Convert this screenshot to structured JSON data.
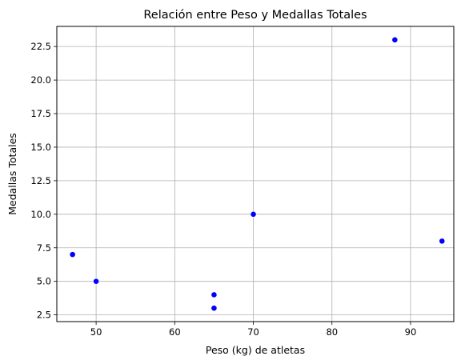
{
  "chart_data": {
    "type": "scatter",
    "title": "Relación entre Peso y Medallas Totales",
    "xlabel": "Peso (kg) de atletas",
    "ylabel": "Medallas Totales",
    "xlim": [
      45,
      95.5
    ],
    "ylim": [
      2.0,
      24.0
    ],
    "xticks": [
      50,
      60,
      70,
      80,
      90
    ],
    "xtick_labels": [
      "50",
      "60",
      "70",
      "80",
      "90"
    ],
    "yticks": [
      2.5,
      5.0,
      7.5,
      10.0,
      12.5,
      15.0,
      17.5,
      20.0,
      22.5
    ],
    "ytick_labels": [
      "2.5",
      "5.0",
      "7.5",
      "10.0",
      "12.5",
      "15.0",
      "17.5",
      "20.0",
      "22.5"
    ],
    "grid": true,
    "marker_color": "#0000ff",
    "points": [
      {
        "x": 47,
        "y": 7
      },
      {
        "x": 50,
        "y": 5
      },
      {
        "x": 65,
        "y": 4
      },
      {
        "x": 65,
        "y": 3
      },
      {
        "x": 70,
        "y": 10
      },
      {
        "x": 88,
        "y": 23
      },
      {
        "x": 94,
        "y": 8
      }
    ]
  }
}
